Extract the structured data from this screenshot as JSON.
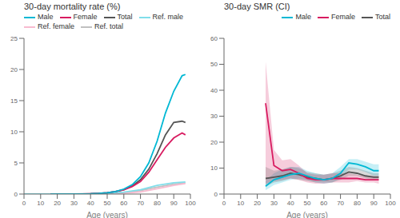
{
  "chart_data": [
    {
      "type": "line",
      "title": "30-day mortality rate (%)",
      "xlabel": "Age (years)",
      "xlim": [
        0,
        100
      ],
      "xticks": [
        0,
        10,
        20,
        30,
        40,
        50,
        60,
        70,
        80,
        90,
        100
      ],
      "ylim": [
        0,
        25
      ],
      "yticks": [
        0,
        5,
        10,
        15,
        20,
        25
      ],
      "grid": false,
      "legend": "upper left",
      "series": [
        {
          "name": "Male",
          "color": "#00b8d4",
          "x": [
            16,
            24,
            30,
            35,
            40,
            45,
            50,
            55,
            60,
            65,
            70,
            75,
            80,
            85,
            90,
            95,
            97
          ],
          "values": [
            0.0,
            0.0,
            0.0,
            0.02,
            0.04,
            0.1,
            0.2,
            0.4,
            0.8,
            1.5,
            2.8,
            5.0,
            8.5,
            13.0,
            16.5,
            19.0,
            19.2
          ]
        },
        {
          "name": "Female",
          "color": "#d81b60",
          "x": [
            16,
            24,
            30,
            35,
            40,
            45,
            50,
            55,
            60,
            65,
            70,
            75,
            80,
            85,
            90,
            95,
            97
          ],
          "values": [
            0.0,
            0.0,
            0.0,
            0.02,
            0.05,
            0.1,
            0.2,
            0.4,
            0.7,
            1.2,
            2.0,
            3.5,
            5.5,
            7.5,
            9.0,
            9.8,
            9.5
          ]
        },
        {
          "name": "Total",
          "color": "#555555",
          "x": [
            16,
            24,
            30,
            35,
            40,
            45,
            50,
            55,
            60,
            65,
            70,
            75,
            80,
            85,
            90,
            95,
            97
          ],
          "values": [
            0.0,
            0.0,
            0.0,
            0.02,
            0.04,
            0.1,
            0.2,
            0.4,
            0.7,
            1.3,
            2.3,
            4.0,
            6.5,
            9.5,
            11.5,
            11.7,
            11.5
          ]
        },
        {
          "name": "Ref. male",
          "color": "#80deea",
          "x": [
            0,
            10,
            20,
            30,
            40,
            50,
            60,
            70,
            80,
            90,
            97
          ],
          "values": [
            0.0,
            0.0,
            0.01,
            0.02,
            0.05,
            0.1,
            0.3,
            0.7,
            1.4,
            1.8,
            1.95
          ]
        },
        {
          "name": "Ref. female",
          "color": "#f8bbd0",
          "x": [
            0,
            10,
            20,
            30,
            40,
            50,
            60,
            70,
            80,
            90,
            97
          ],
          "values": [
            0.0,
            0.0,
            0.005,
            0.01,
            0.03,
            0.06,
            0.14,
            0.35,
            0.85,
            1.4,
            1.7
          ]
        },
        {
          "name": "Ref. total",
          "color": "#c0c0c0",
          "x": [
            0,
            10,
            20,
            30,
            40,
            50,
            60,
            70,
            80,
            90,
            97
          ],
          "values": [
            0.0,
            0.0,
            0.008,
            0.015,
            0.04,
            0.08,
            0.2,
            0.55,
            1.1,
            1.6,
            1.82
          ]
        }
      ]
    },
    {
      "type": "line",
      "title": "30-day SMR (CI)",
      "xlabel": "Age (years)",
      "xlim": [
        0,
        100
      ],
      "xticks": [
        0,
        10,
        20,
        30,
        40,
        50,
        60,
        70,
        80,
        90,
        100
      ],
      "ylim": [
        0,
        60
      ],
      "yticks": [
        0,
        10,
        20,
        30,
        40,
        50,
        60
      ],
      "grid": false,
      "legend": "upper right",
      "series": [
        {
          "name": "Male",
          "color": "#00b8d4",
          "x": [
            25,
            30,
            35,
            40,
            45,
            50,
            55,
            60,
            65,
            70,
            75,
            80,
            85,
            90,
            93
          ],
          "values": [
            3.0,
            5.5,
            6.5,
            7.5,
            8.0,
            7.0,
            6.0,
            5.5,
            6.0,
            8.0,
            12.0,
            11.5,
            10.5,
            9.0,
            9.0
          ],
          "ci_lo": [
            1.5,
            3.5,
            4.5,
            5.5,
            6.0,
            5.5,
            4.5,
            4.0,
            4.5,
            6.0,
            9.5,
            9.5,
            8.5,
            7.0,
            7.0
          ],
          "ci_hi": [
            5.0,
            8.0,
            9.5,
            10.5,
            10.5,
            9.0,
            8.0,
            7.5,
            8.0,
            10.5,
            13.5,
            13.5,
            12.5,
            11.5,
            11.5
          ]
        },
        {
          "name": "Female",
          "color": "#d81b60",
          "x": [
            25,
            30,
            35,
            40,
            45,
            50,
            55,
            60,
            65,
            70,
            75,
            80,
            85,
            90,
            93
          ],
          "values": [
            35.0,
            11.0,
            9.0,
            9.5,
            8.0,
            6.0,
            5.5,
            5.5,
            6.0,
            6.0,
            6.0,
            6.0,
            5.5,
            5.5,
            5.5
          ],
          "ci_lo": [
            4.0,
            5.0,
            5.5,
            6.0,
            5.5,
            4.5,
            4.0,
            4.0,
            4.5,
            4.5,
            4.5,
            5.0,
            4.5,
            4.5,
            4.0
          ],
          "ci_hi": [
            51.0,
            17.0,
            13.0,
            13.5,
            11.0,
            8.0,
            7.5,
            7.5,
            8.0,
            8.0,
            8.0,
            7.5,
            7.0,
            7.0,
            7.0
          ]
        },
        {
          "name": "Total",
          "color": "#555555",
          "x": [
            25,
            30,
            35,
            40,
            45,
            50,
            55,
            60,
            65,
            70,
            75,
            80,
            85,
            90,
            93
          ],
          "values": [
            6.0,
            6.5,
            7.0,
            8.0,
            7.5,
            6.5,
            6.0,
            5.5,
            6.0,
            7.0,
            8.5,
            8.0,
            7.0,
            6.5,
            6.5
          ],
          "ci_lo": [
            3.0,
            4.5,
            5.0,
            6.0,
            5.5,
            5.0,
            4.5,
            4.5,
            4.5,
            5.5,
            7.0,
            7.0,
            6.0,
            5.5,
            5.5
          ],
          "ci_hi": [
            10.5,
            9.0,
            9.5,
            10.5,
            10.0,
            8.5,
            8.0,
            7.5,
            8.0,
            9.0,
            10.5,
            10.0,
            9.0,
            8.0,
            8.0
          ]
        }
      ]
    }
  ]
}
